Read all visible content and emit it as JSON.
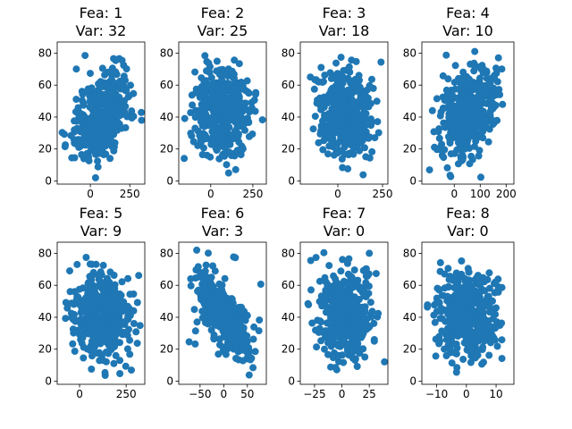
{
  "colors": {
    "marker": "#1f77b4",
    "axes": "#000000",
    "background": "#ffffff"
  },
  "chart_data": [
    {
      "type": "scatter",
      "title_line1": "Fea: 1",
      "title_line2": "Var: 32",
      "xlim": [
        -210,
        345
      ],
      "ylim": [
        -2,
        87
      ],
      "xticks": [
        0,
        250
      ],
      "yticks": [
        0,
        20,
        40,
        60,
        80
      ],
      "cloud": {
        "xmin": -190,
        "xmax": 330,
        "ymin": 2,
        "ymax": 82,
        "correlation": 0.45
      },
      "grid": false
    },
    {
      "type": "scatter",
      "title_line1": "Fea: 2",
      "title_line2": "Var: 25",
      "xlim": [
        -190,
        330
      ],
      "ylim": [
        -2,
        87
      ],
      "xticks": [
        0,
        250
      ],
      "yticks": [
        0,
        20,
        40,
        60,
        80
      ],
      "cloud": {
        "xmin": -170,
        "xmax": 310,
        "ymin": 2,
        "ymax": 82,
        "correlation": 0.0
      },
      "grid": false
    },
    {
      "type": "scatter",
      "title_line1": "Fea: 3",
      "title_line2": "Var: 18",
      "xlim": [
        -210,
        280
      ],
      "ylim": [
        -2,
        87
      ],
      "xticks": [
        0,
        250
      ],
      "yticks": [
        0,
        20,
        40,
        60,
        80
      ],
      "cloud": {
        "xmin": -190,
        "xmax": 260,
        "ymin": 2,
        "ymax": 82,
        "correlation": -0.15
      },
      "grid": false
    },
    {
      "type": "scatter",
      "title_line1": "Fea: 4",
      "title_line2": "Var: 10",
      "xlim": [
        -125,
        230
      ],
      "ylim": [
        -2,
        87
      ],
      "xticks": [
        0,
        100,
        200
      ],
      "yticks": [
        0,
        20,
        40,
        60,
        80
      ],
      "cloud": {
        "xmin": -115,
        "xmax": 210,
        "ymin": 2,
        "ymax": 82,
        "correlation": 0.35
      },
      "grid": false
    },
    {
      "type": "scatter",
      "title_line1": "Fea: 5",
      "title_line2": "Var: 9",
      "xlim": [
        -120,
        350
      ],
      "ylim": [
        -2,
        87
      ],
      "xticks": [
        0,
        250
      ],
      "yticks": [
        0,
        20,
        40,
        60,
        80
      ],
      "cloud": {
        "xmin": -105,
        "xmax": 335,
        "ymin": 2,
        "ymax": 82,
        "correlation": -0.1
      },
      "grid": false
    },
    {
      "type": "scatter",
      "title_line1": "Fea: 6",
      "title_line2": "Var: 3",
      "xlim": [
        -95,
        90
      ],
      "ylim": [
        -2,
        87
      ],
      "xticks": [
        -50,
        0,
        50
      ],
      "yticks": [
        0,
        20,
        40,
        60,
        80
      ],
      "cloud": {
        "xmin": -85,
        "xmax": 85,
        "ymin": 2,
        "ymax": 82,
        "correlation": -0.7
      },
      "grid": false
    },
    {
      "type": "scatter",
      "title_line1": "Fea: 7",
      "title_line2": "Var: 0",
      "xlim": [
        -38,
        42
      ],
      "ylim": [
        -2,
        87
      ],
      "xticks": [
        -25,
        0,
        25
      ],
      "yticks": [
        0,
        20,
        40,
        60,
        80
      ],
      "cloud": {
        "xmin": -35,
        "xmax": 39,
        "ymin": 2,
        "ymax": 82,
        "correlation": -0.05
      },
      "grid": false
    },
    {
      "type": "scatter",
      "title_line1": "Fea: 8",
      "title_line2": "Var: 0",
      "xlim": [
        -15,
        16
      ],
      "ylim": [
        -2,
        87
      ],
      "xticks": [
        -10,
        0,
        10
      ],
      "yticks": [
        0,
        20,
        40,
        60,
        80
      ],
      "cloud": {
        "xmin": -14,
        "xmax": 14,
        "ymin": 2,
        "ymax": 82,
        "correlation": 0.0
      },
      "grid": false
    }
  ]
}
